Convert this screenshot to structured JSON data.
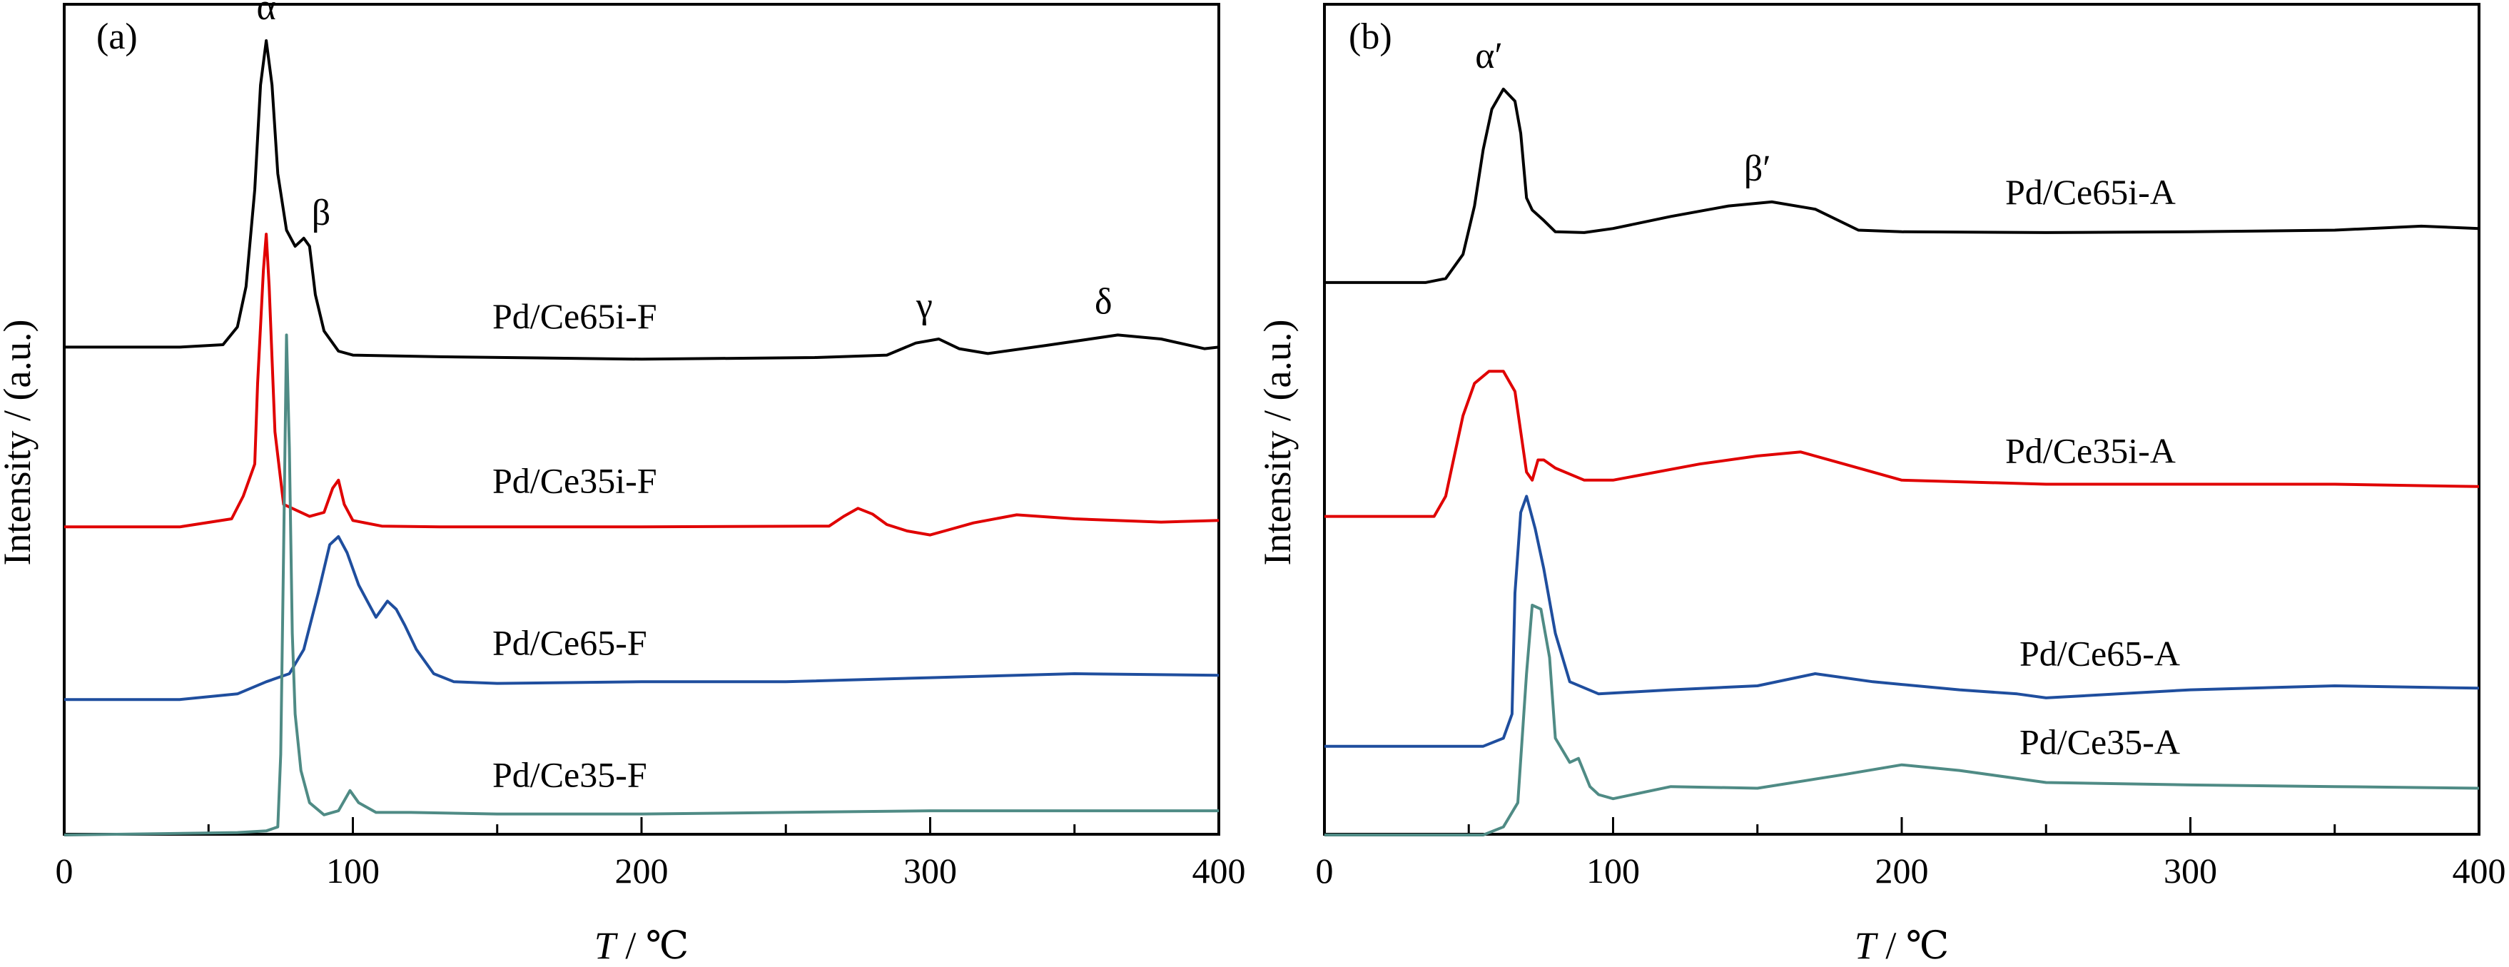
{
  "figure": {
    "panel_a_label": "(a)",
    "panel_b_label": "(b)"
  },
  "chart_data": [
    {
      "type": "line",
      "panel": "(a)",
      "xlabel_italic": "T",
      "xlabel_unit": " / ℃",
      "ylabel": "Intensity / (a.u.)",
      "xlim": [
        0,
        400
      ],
      "xticks": [
        0,
        100,
        200,
        300,
        400
      ],
      "y_ticks_shown": false,
      "grid": false,
      "peak_labels": [
        {
          "text": "α",
          "x": 70
        },
        {
          "text": "β",
          "x": 89
        },
        {
          "text": "γ",
          "x": 298
        },
        {
          "text": "δ",
          "x": 360
        }
      ],
      "series": [
        {
          "name": "Pd/Ce65i-F",
          "color": "#000000",
          "points": [
            [
              0,
              0.605
            ],
            [
              40,
              0.605
            ],
            [
              55,
              0.608
            ],
            [
              60,
              0.63
            ],
            [
              63,
              0.68
            ],
            [
              66,
              0.8
            ],
            [
              68,
              0.93
            ],
            [
              70,
              0.985
            ],
            [
              72,
              0.93
            ],
            [
              74,
              0.82
            ],
            [
              77,
              0.75
            ],
            [
              80,
              0.73
            ],
            [
              83,
              0.74
            ],
            [
              85,
              0.73
            ],
            [
              87,
              0.67
            ],
            [
              90,
              0.625
            ],
            [
              95,
              0.6
            ],
            [
              100,
              0.595
            ],
            [
              130,
              0.593
            ],
            [
              200,
              0.59
            ],
            [
              260,
              0.592
            ],
            [
              285,
              0.595
            ],
            [
              295,
              0.61
            ],
            [
              303,
              0.615
            ],
            [
              310,
              0.603
            ],
            [
              320,
              0.597
            ],
            [
              340,
              0.607
            ],
            [
              365,
              0.62
            ],
            [
              380,
              0.615
            ],
            [
              395,
              0.603
            ],
            [
              400,
              0.605
            ]
          ]
        },
        {
          "name": "Pd/Ce35i-F",
          "color": "#e00000",
          "points": [
            [
              0,
              0.382
            ],
            [
              40,
              0.382
            ],
            [
              58,
              0.392
            ],
            [
              62,
              0.42
            ],
            [
              64,
              0.44
            ],
            [
              66,
              0.46
            ],
            [
              67,
              0.56
            ],
            [
              69,
              0.7
            ],
            [
              70,
              0.745
            ],
            [
              71,
              0.68
            ],
            [
              73,
              0.5
            ],
            [
              76,
              0.41
            ],
            [
              85,
              0.395
            ],
            [
              90,
              0.4
            ],
            [
              93,
              0.43
            ],
            [
              95,
              0.44
            ],
            [
              97,
              0.41
            ],
            [
              100,
              0.39
            ],
            [
              110,
              0.383
            ],
            [
              130,
              0.382
            ],
            [
              200,
              0.382
            ],
            [
              265,
              0.383
            ],
            [
              270,
              0.395
            ],
            [
              275,
              0.405
            ],
            [
              280,
              0.398
            ],
            [
              285,
              0.385
            ],
            [
              292,
              0.377
            ],
            [
              300,
              0.372
            ],
            [
              305,
              0.377
            ],
            [
              315,
              0.387
            ],
            [
              330,
              0.397
            ],
            [
              350,
              0.392
            ],
            [
              380,
              0.388
            ],
            [
              400,
              0.39
            ]
          ]
        },
        {
          "name": "Pd/Ce65-F",
          "color": "#1f4e9e",
          "points": [
            [
              0,
              0.168
            ],
            [
              40,
              0.168
            ],
            [
              60,
              0.175
            ],
            [
              70,
              0.19
            ],
            [
              78,
              0.2
            ],
            [
              83,
              0.23
            ],
            [
              88,
              0.3
            ],
            [
              92,
              0.36
            ],
            [
              95,
              0.37
            ],
            [
              98,
              0.35
            ],
            [
              102,
              0.31
            ],
            [
              105,
              0.29
            ],
            [
              108,
              0.27
            ],
            [
              112,
              0.29
            ],
            [
              115,
              0.28
            ],
            [
              118,
              0.26
            ],
            [
              122,
              0.23
            ],
            [
              128,
              0.2
            ],
            [
              135,
              0.19
            ],
            [
              150,
              0.188
            ],
            [
              200,
              0.19
            ],
            [
              250,
              0.19
            ],
            [
              300,
              0.195
            ],
            [
              350,
              0.2
            ],
            [
              400,
              0.198
            ]
          ]
        },
        {
          "name": "Pd/Ce35-F",
          "color": "#4f8b85",
          "points": [
            [
              0,
              0.0
            ],
            [
              60,
              0.003
            ],
            [
              70,
              0.005
            ],
            [
              74,
              0.01
            ],
            [
              75,
              0.1
            ],
            [
              76,
              0.35
            ],
            [
              77,
              0.62
            ],
            [
              78,
              0.48
            ],
            [
              79,
              0.25
            ],
            [
              80,
              0.15
            ],
            [
              82,
              0.08
            ],
            [
              85,
              0.04
            ],
            [
              90,
              0.025
            ],
            [
              95,
              0.03
            ],
            [
              99,
              0.055
            ],
            [
              102,
              0.04
            ],
            [
              108,
              0.028
            ],
            [
              120,
              0.028
            ],
            [
              150,
              0.026
            ],
            [
              200,
              0.026
            ],
            [
              250,
              0.028
            ],
            [
              300,
              0.03
            ],
            [
              350,
              0.03
            ],
            [
              400,
              0.03
            ]
          ]
        }
      ]
    },
    {
      "type": "line",
      "panel": "(b)",
      "xlabel_italic": "T",
      "xlabel_unit": " / ℃",
      "ylabel": "Intensity / (a.u.)",
      "xlim": [
        0,
        400
      ],
      "xticks": [
        0,
        100,
        200,
        300,
        400
      ],
      "y_ticks_shown": false,
      "grid": false,
      "peak_labels": [
        {
          "text": "α′",
          "x": 57
        },
        {
          "text": "β′",
          "x": 150
        }
      ],
      "series": [
        {
          "name": "Pd/Ce65i-A",
          "color": "#000000",
          "points": [
            [
              0,
              0.685
            ],
            [
              35,
              0.685
            ],
            [
              42,
              0.69
            ],
            [
              48,
              0.72
            ],
            [
              52,
              0.78
            ],
            [
              55,
              0.85
            ],
            [
              58,
              0.9
            ],
            [
              62,
              0.925
            ],
            [
              66,
              0.91
            ],
            [
              68,
              0.87
            ],
            [
              70,
              0.79
            ],
            [
              72,
              0.775
            ],
            [
              76,
              0.762
            ],
            [
              80,
              0.748
            ],
            [
              90,
              0.747
            ],
            [
              100,
              0.752
            ],
            [
              120,
              0.767
            ],
            [
              140,
              0.78
            ],
            [
              155,
              0.785
            ],
            [
              170,
              0.776
            ],
            [
              185,
              0.75
            ],
            [
              200,
              0.748
            ],
            [
              250,
              0.747
            ],
            [
              300,
              0.748
            ],
            [
              350,
              0.75
            ],
            [
              380,
              0.755
            ],
            [
              400,
              0.752
            ]
          ]
        },
        {
          "name": "Pd/Ce35i-A",
          "color": "#e00000",
          "points": [
            [
              0,
              0.395
            ],
            [
              38,
              0.395
            ],
            [
              42,
              0.42
            ],
            [
              45,
              0.47
            ],
            [
              48,
              0.52
            ],
            [
              52,
              0.56
            ],
            [
              57,
              0.575
            ],
            [
              62,
              0.575
            ],
            [
              66,
              0.55
            ],
            [
              68,
              0.5
            ],
            [
              70,
              0.45
            ],
            [
              72,
              0.44
            ],
            [
              74,
              0.465
            ],
            [
              76,
              0.465
            ],
            [
              80,
              0.455
            ],
            [
              90,
              0.44
            ],
            [
              100,
              0.44
            ],
            [
              130,
              0.46
            ],
            [
              150,
              0.47
            ],
            [
              165,
              0.475
            ],
            [
              180,
              0.46
            ],
            [
              200,
              0.44
            ],
            [
              250,
              0.435
            ],
            [
              300,
              0.435
            ],
            [
              350,
              0.435
            ],
            [
              400,
              0.432
            ]
          ]
        },
        {
          "name": "Pd/Ce65-A",
          "color": "#1f4e9e",
          "points": [
            [
              0,
              0.11
            ],
            [
              55,
              0.11
            ],
            [
              62,
              0.12
            ],
            [
              65,
              0.15
            ],
            [
              66,
              0.3
            ],
            [
              68,
              0.4
            ],
            [
              70,
              0.42
            ],
            [
              73,
              0.38
            ],
            [
              76,
              0.33
            ],
            [
              80,
              0.25
            ],
            [
              85,
              0.19
            ],
            [
              95,
              0.175
            ],
            [
              120,
              0.18
            ],
            [
              150,
              0.185
            ],
            [
              170,
              0.2
            ],
            [
              190,
              0.19
            ],
            [
              220,
              0.18
            ],
            [
              240,
              0.175
            ],
            [
              250,
              0.17
            ],
            [
              300,
              0.18
            ],
            [
              350,
              0.185
            ],
            [
              400,
              0.182
            ]
          ]
        },
        {
          "name": "Pd/Ce35-A",
          "color": "#4f8b85",
          "points": [
            [
              0,
              0.0
            ],
            [
              55,
              0.0
            ],
            [
              62,
              0.01
            ],
            [
              67,
              0.04
            ],
            [
              70,
              0.2
            ],
            [
              72,
              0.285
            ],
            [
              75,
              0.28
            ],
            [
              78,
              0.22
            ],
            [
              80,
              0.12
            ],
            [
              85,
              0.09
            ],
            [
              88,
              0.095
            ],
            [
              92,
              0.06
            ],
            [
              95,
              0.05
            ],
            [
              100,
              0.045
            ],
            [
              120,
              0.06
            ],
            [
              150,
              0.058
            ],
            [
              180,
              0.075
            ],
            [
              200,
              0.087
            ],
            [
              220,
              0.08
            ],
            [
              250,
              0.065
            ],
            [
              300,
              0.062
            ],
            [
              350,
              0.06
            ],
            [
              400,
              0.058
            ]
          ]
        }
      ]
    }
  ]
}
